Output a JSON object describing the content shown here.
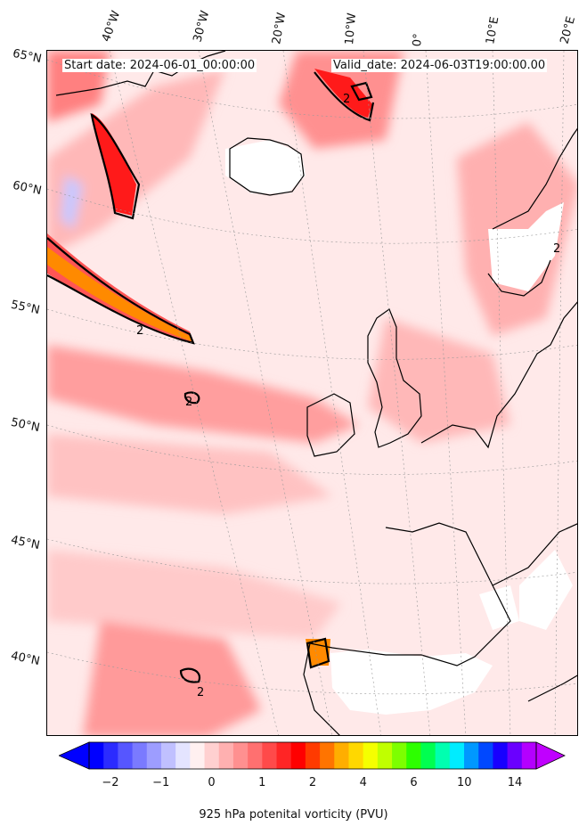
{
  "header": {
    "start_date": "Start date: 2024-06-01_00:00:00",
    "valid_date": "Valid_date: 2024-06-03T19:00:00.00"
  },
  "lon_labels": [
    "40°W",
    "30°W",
    "20°W",
    "10°W",
    "0°",
    "10°E",
    "20°E"
  ],
  "lat_labels": [
    "65°N",
    "60°N",
    "55°N",
    "50°N",
    "45°N",
    "40°N"
  ],
  "contour_label": "2",
  "colorbar": {
    "label": "925 hPa potenital vorticity (PVU)",
    "ticks": [
      "−2",
      "−1",
      "0",
      "1",
      "2",
      "4",
      "6",
      "10",
      "14"
    ],
    "colors": [
      "#0000ff",
      "#2b2bff",
      "#5656ff",
      "#7a7aff",
      "#9d9dff",
      "#c0c0ff",
      "#e4e4ff",
      "#fff0f0",
      "#ffd0d0",
      "#ffb0b0",
      "#ff9090",
      "#ff7070",
      "#ff4a4a",
      "#ff2525",
      "#ff0000",
      "#ff3a00",
      "#ff7400",
      "#ffae00",
      "#ffd800",
      "#f5ff00",
      "#c0ff00",
      "#7dff00",
      "#2dff00",
      "#00ff50",
      "#00ffb0",
      "#00ecff",
      "#0098ff",
      "#0048ff",
      "#1800ff",
      "#6a00ff",
      "#b400ff"
    ],
    "under_color": "#0000ff",
    "over_color": "#c000ff"
  }
}
